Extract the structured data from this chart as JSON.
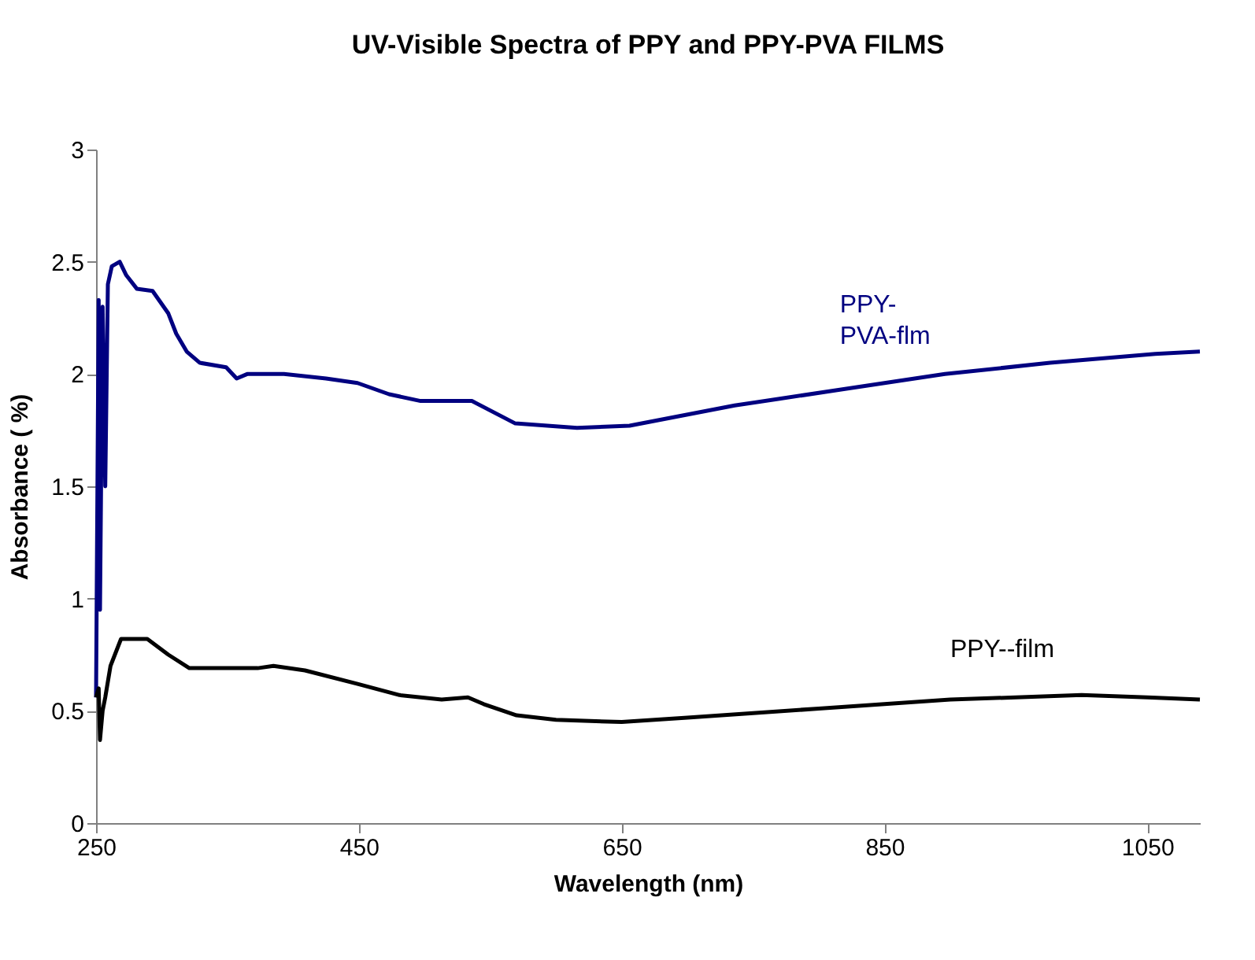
{
  "chart_data": {
    "type": "line",
    "title": "UV-Visible Spectra of PPY and PPY-PVA FILMS",
    "xlabel": "Wavelength (nm)",
    "ylabel": "Absorbance ( %)",
    "xlim": [
      250,
      1090
    ],
    "xticks": [
      250,
      450,
      650,
      850,
      1050
    ],
    "ylim": [
      0,
      3
    ],
    "yticks": [
      0,
      0.5,
      1,
      1.5,
      2,
      2.5,
      3
    ],
    "grid": false,
    "legend": false,
    "marker": "none",
    "line_style": "solid",
    "series": [
      {
        "name": "PPY-PVA-flm",
        "color": "#000080",
        "x": [
          250,
          252,
          253,
          255,
          257,
          259,
          262,
          268,
          273,
          281,
          293,
          305,
          311,
          319,
          329,
          349,
          357,
          365,
          393,
          425,
          449,
          473,
          497,
          536,
          569,
          616,
          656,
          736,
          816,
          896,
          976,
          1056,
          1090
        ],
        "values": [
          0.56,
          2.33,
          0.95,
          2.3,
          1.5,
          2.4,
          2.48,
          2.5,
          2.44,
          2.38,
          2.37,
          2.27,
          2.18,
          2.1,
          2.05,
          2.03,
          1.98,
          2.0,
          2.0,
          1.98,
          1.96,
          1.91,
          1.88,
          1.88,
          1.78,
          1.76,
          1.77,
          1.86,
          1.93,
          2.0,
          2.05,
          2.09,
          2.1
        ]
      },
      {
        "name": "PPY--film",
        "color": "#000000",
        "x": [
          250,
          252,
          253,
          255,
          257,
          261,
          269,
          289,
          305,
          321,
          373,
          385,
          409,
          449,
          481,
          513,
          533,
          545,
          570,
          600,
          650,
          700,
          750,
          800,
          850,
          900,
          950,
          1000,
          1050,
          1090
        ],
        "values": [
          0.56,
          0.6,
          0.37,
          0.5,
          0.56,
          0.7,
          0.82,
          0.82,
          0.75,
          0.69,
          0.69,
          0.7,
          0.68,
          0.62,
          0.57,
          0.55,
          0.56,
          0.53,
          0.48,
          0.46,
          0.45,
          0.47,
          0.49,
          0.51,
          0.53,
          0.55,
          0.56,
          0.57,
          0.56,
          0.55
        ]
      }
    ]
  }
}
